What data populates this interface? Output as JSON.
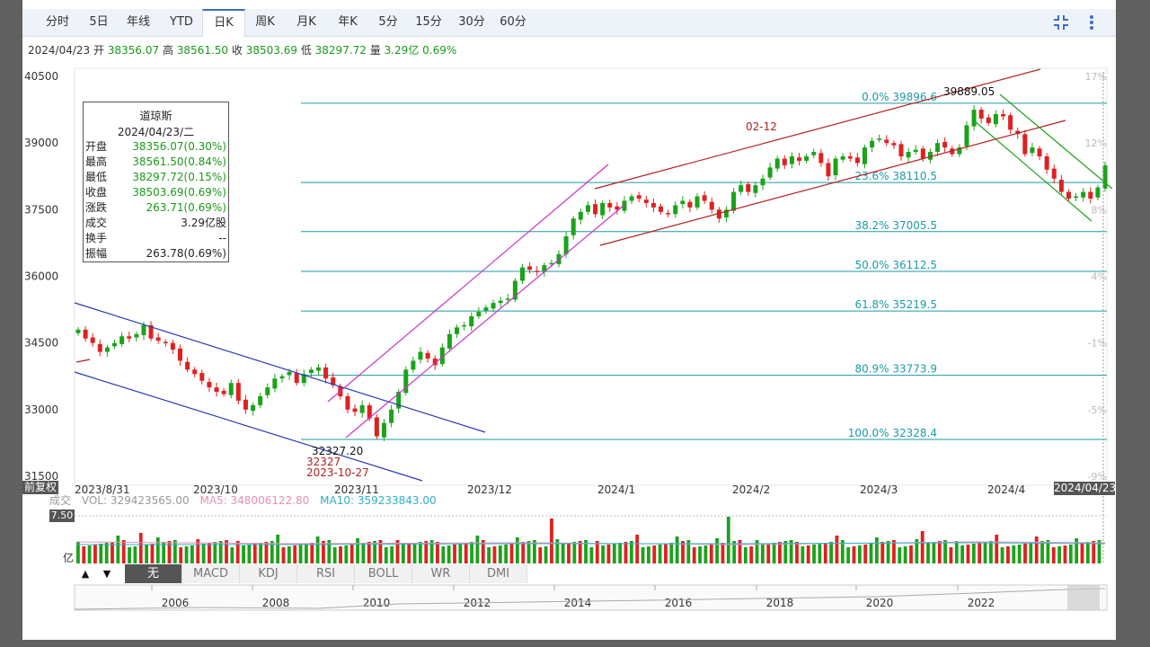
{
  "tabs": [
    {
      "label": "分时",
      "active": false
    },
    {
      "label": "5日",
      "active": false
    },
    {
      "label": "年线",
      "active": false
    },
    {
      "label": "YTD",
      "active": false
    },
    {
      "label": "日K",
      "active": true
    },
    {
      "label": "周K",
      "active": false
    },
    {
      "label": "月K",
      "active": false
    },
    {
      "label": "年K",
      "active": false
    },
    {
      "label": "5分",
      "active": false
    },
    {
      "label": "15分",
      "active": false
    },
    {
      "label": "30分",
      "active": false
    },
    {
      "label": "60分",
      "active": false
    }
  ],
  "toolbar": {
    "fullscreen_icon": "fullscreen-icon",
    "more_icon": "more-vertical-icon"
  },
  "infoline": {
    "date": "2024/04/23",
    "open_label": "开",
    "open": "38356.07",
    "high_label": "高",
    "high": "38561.50",
    "close_label": "收",
    "close": "38503.69",
    "low_label": "低",
    "low": "38297.72",
    "volume_label": "量",
    "volume": "3.29亿",
    "change_pct": "0.69%"
  },
  "tooltip": {
    "title": "道琼斯",
    "date": "2024/04/23/二",
    "rows": [
      {
        "label": "开盘",
        "value": "38356.07(0.30%)",
        "green": true
      },
      {
        "label": "最高",
        "value": "38561.50(0.84%)",
        "green": true
      },
      {
        "label": "最低",
        "value": "38297.72(0.15%)",
        "green": true
      },
      {
        "label": "收盘",
        "value": "38503.69(0.69%)",
        "green": true
      },
      {
        "label": "涨跌",
        "value": "263.71(0.69%)",
        "green": true
      },
      {
        "label": "成交",
        "value": "3.29亿股",
        "green": false
      },
      {
        "label": "换手",
        "value": "--",
        "green": false
      },
      {
        "label": "振幅",
        "value": "263.78(0.69%)",
        "green": false
      }
    ]
  },
  "fuquan_label": "前复权",
  "cursor_label": "2024/04/23",
  "volume_header": {
    "label": "成交",
    "vol": "VOL: 329423565.00",
    "ma5": "MA5: 348006122.80",
    "ma10": "MA10: 359233843.00",
    "ma5_color": "#e88fb4",
    "ma10_color": "#2fb0c8"
  },
  "volume_axis": {
    "max_label": "7.50",
    "unit_label": "亿"
  },
  "indicator_tabs": [
    {
      "label": "无",
      "active": true
    },
    {
      "label": "MACD",
      "active": false
    },
    {
      "label": "KDJ",
      "active": false
    },
    {
      "label": "RSI",
      "active": false
    },
    {
      "label": "BOLL",
      "active": false
    },
    {
      "label": "WR",
      "active": false
    },
    {
      "label": "DMI",
      "active": false
    }
  ],
  "indicator_arrows": {
    "up": "▲",
    "down": "▼"
  },
  "navigator_years": [
    "2006",
    "2008",
    "2010",
    "2012",
    "2014",
    "2016",
    "2018",
    "2020",
    "2022"
  ],
  "colors": {
    "up": "#1aa31a",
    "down": "#e02020",
    "fib": "#1b9aa8",
    "channel_blue": "#2a3cb0",
    "channel_magenta": "#cc33cc",
    "channel_red": "#b52020",
    "channel_green": "#1aa31a"
  },
  "chart_data": {
    "type": "candlestick",
    "title": "道琼斯",
    "y_ticks": [
      40500,
      39000,
      37500,
      36000,
      34500,
      33000,
      31500
    ],
    "ylim": [
      31500,
      40500
    ],
    "right_pct_ticks": [
      "17%",
      "12%",
      "8%",
      "4%",
      "-1%",
      "-5%",
      "-9%"
    ],
    "x_tick_labels": [
      "2023/8/31",
      "2023/10",
      "2023/11",
      "2023/12",
      "2024/1",
      "2024/2",
      "2024/3",
      "2024/4"
    ],
    "fibonacci": [
      {
        "label": "0.0% 39896.6",
        "value": 39896.6
      },
      {
        "label": "23.6% 38110.5",
        "value": 38110.5
      },
      {
        "label": "38.2% 37005.5",
        "value": 37005.5
      },
      {
        "label": "50.0% 36112.5",
        "value": 36112.5
      },
      {
        "label": "61.8% 35219.5",
        "value": 35219.5
      },
      {
        "label": "80.9% 33773.9",
        "value": 33773.9
      },
      {
        "label": "100.0% 32328.4",
        "value": 32328.4
      }
    ],
    "annotations": [
      {
        "text": "39889.05"
      },
      {
        "text": "02-12"
      },
      {
        "text": "32327.20"
      },
      {
        "text": "32327"
      },
      {
        "text": "2023-10-27"
      }
    ],
    "closes": [
      34800,
      34600,
      34500,
      34300,
      34400,
      34500,
      34650,
      34600,
      34700,
      34900,
      34600,
      34550,
      34500,
      34350,
      34100,
      33900,
      33800,
      33650,
      33500,
      33400,
      33350,
      33600,
      33200,
      33000,
      33100,
      33300,
      33500,
      33700,
      33750,
      33850,
      33600,
      33800,
      33900,
      33950,
      33700,
      33550,
      33300,
      33000,
      32950,
      33100,
      32800,
      32400,
      32700,
      33000,
      33400,
      33900,
      34100,
      34300,
      34150,
      34000,
      34400,
      34700,
      34850,
      34900,
      35100,
      35200,
      35300,
      35400,
      35450,
      35500,
      35900,
      36200,
      36150,
      36100,
      36250,
      36300,
      36500,
      36900,
      37300,
      37450,
      37600,
      37400,
      37650,
      37550,
      37500,
      37700,
      37800,
      37750,
      37650,
      37550,
      37450,
      37400,
      37600,
      37700,
      37550,
      37800,
      37700,
      37500,
      37300,
      37500,
      37900,
      38050,
      37900,
      38050,
      38200,
      38450,
      38650,
      38500,
      38700,
      38600,
      38700,
      38800,
      38550,
      38250,
      38650,
      38700,
      38650,
      38550,
      38900,
      39050,
      39100,
      39000,
      38950,
      38700,
      38800,
      38850,
      38650,
      38800,
      39000,
      38900,
      38750,
      38900,
      39400,
      39750,
      39550,
      39450,
      39650,
      39600,
      39300,
      39200,
      38750,
      38900,
      38700,
      38400,
      38200,
      37900,
      37750,
      37800,
      37900,
      37750,
      38000,
      38500
    ]
  }
}
